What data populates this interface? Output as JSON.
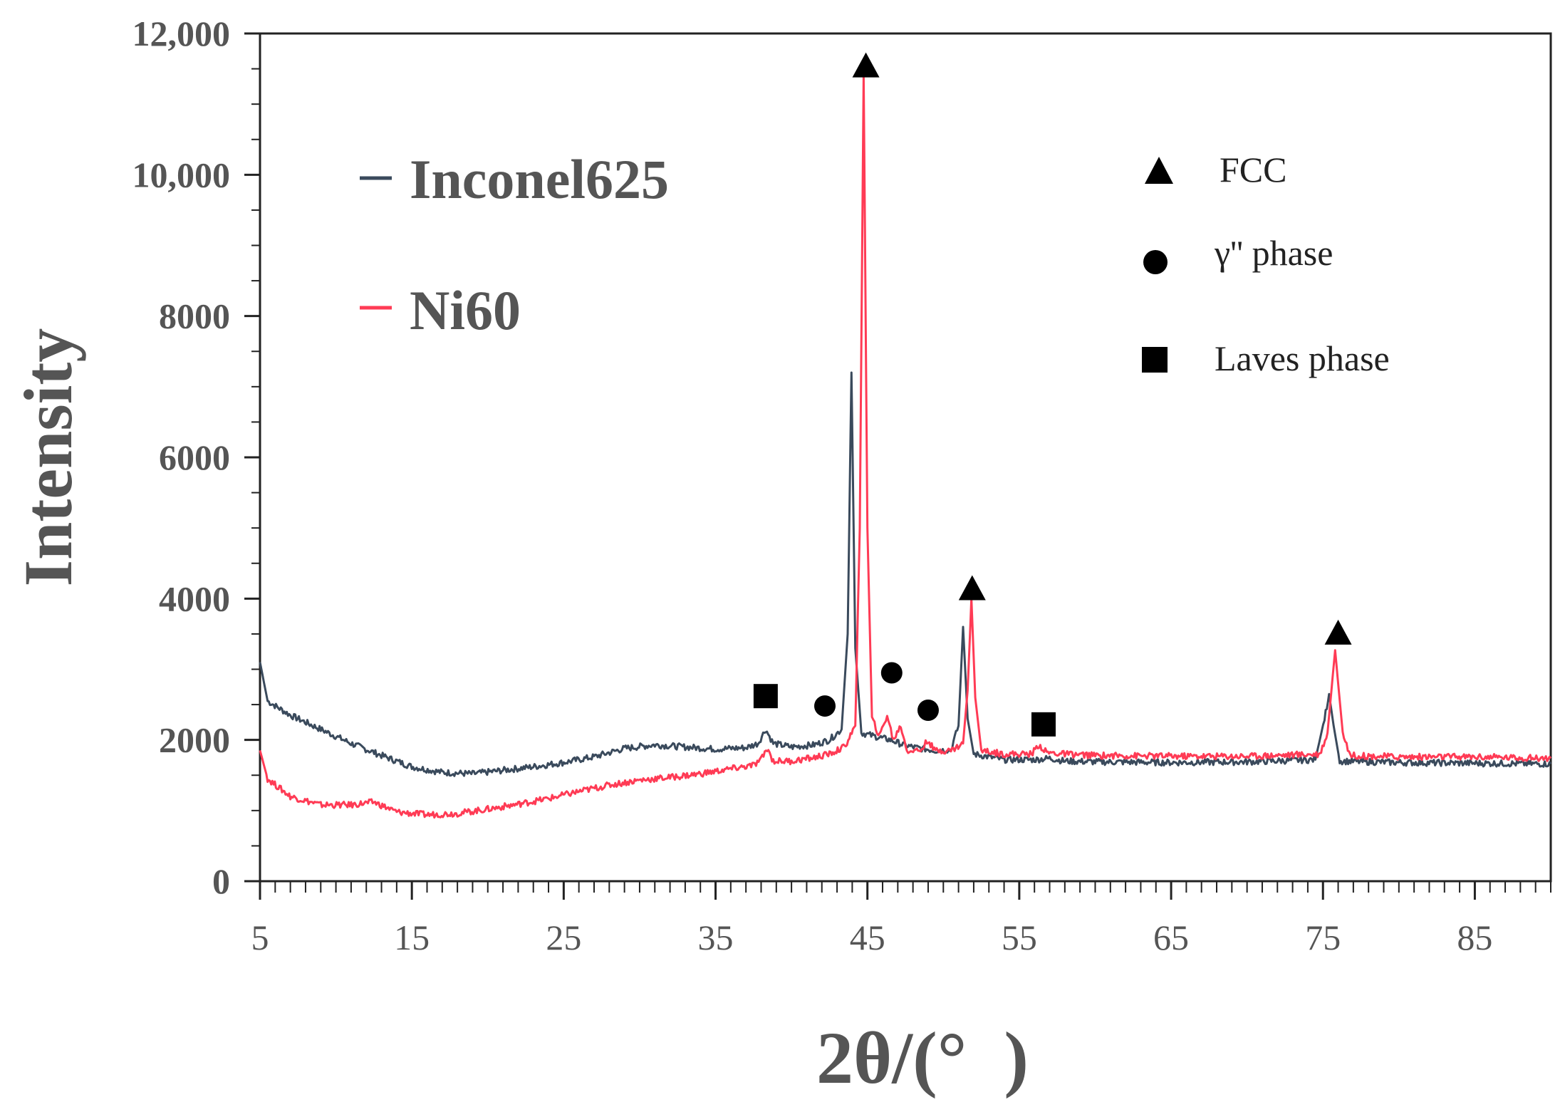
{
  "chart_data": {
    "type": "line",
    "title": "",
    "xlabel": "2θ/(°  )",
    "ylabel": "Intensity",
    "xlim": [
      5,
      90
    ],
    "ylim": [
      0,
      12000
    ],
    "x_ticks": [
      5,
      15,
      25,
      35,
      45,
      55,
      65,
      75,
      85
    ],
    "y_ticks": [
      0,
      2000,
      4000,
      6000,
      8000,
      10000,
      12000
    ],
    "y_tick_labels": [
      "0",
      "2000",
      "4000",
      "6000",
      "8000",
      "10,000",
      "12,000"
    ],
    "series": [
      {
        "name": "Inconel625",
        "color": "#3a4a5c",
        "points": [
          [
            5,
            3100
          ],
          [
            5.5,
            2550
          ],
          [
            7,
            2350
          ],
          [
            9,
            2150
          ],
          [
            11,
            1950
          ],
          [
            13,
            1780
          ],
          [
            15,
            1620
          ],
          [
            17,
            1540
          ],
          [
            19,
            1520
          ],
          [
            21,
            1570
          ],
          [
            23,
            1620
          ],
          [
            25,
            1680
          ],
          [
            27,
            1760
          ],
          [
            29,
            1880
          ],
          [
            31,
            1930
          ],
          [
            33,
            1900
          ],
          [
            35,
            1870
          ],
          [
            37,
            1890
          ],
          [
            37.8,
            1950
          ],
          [
            38.3,
            2150
          ],
          [
            38.8,
            1950
          ],
          [
            40,
            1900
          ],
          [
            41.5,
            1930
          ],
          [
            42.5,
            2000
          ],
          [
            43.3,
            2150
          ],
          [
            43.7,
            3500
          ],
          [
            43.95,
            7200
          ],
          [
            44.2,
            3300
          ],
          [
            44.6,
            2100
          ],
          [
            45.5,
            2050
          ],
          [
            46.5,
            2000
          ],
          [
            47.5,
            1920
          ],
          [
            48.5,
            1880
          ],
          [
            49.5,
            1850
          ],
          [
            50.5,
            1860
          ],
          [
            51.0,
            2200
          ],
          [
            51.3,
            3600
          ],
          [
            51.6,
            2300
          ],
          [
            52.0,
            1800
          ],
          [
            54,
            1720
          ],
          [
            56,
            1720
          ],
          [
            57,
            1740
          ],
          [
            58,
            1700
          ],
          [
            60,
            1690
          ],
          [
            65,
            1680
          ],
          [
            70,
            1690
          ],
          [
            74.5,
            1720
          ],
          [
            75.1,
            2300
          ],
          [
            75.4,
            2650
          ],
          [
            75.7,
            2200
          ],
          [
            76.1,
            1700
          ],
          [
            80,
            1680
          ],
          [
            85,
            1670
          ],
          [
            90,
            1660
          ]
        ]
      },
      {
        "name": "Ni60",
        "color": "#ff3b55",
        "points": [
          [
            5,
            1850
          ],
          [
            5.5,
            1450
          ],
          [
            7,
            1200
          ],
          [
            9,
            1080
          ],
          [
            11,
            1080
          ],
          [
            12.5,
            1120
          ],
          [
            14,
            980
          ],
          [
            16,
            940
          ],
          [
            18,
            960
          ],
          [
            20,
            1020
          ],
          [
            22,
            1090
          ],
          [
            24,
            1170
          ],
          [
            26,
            1270
          ],
          [
            28,
            1360
          ],
          [
            30,
            1430
          ],
          [
            32,
            1470
          ],
          [
            34,
            1520
          ],
          [
            36,
            1590
          ],
          [
            37.5,
            1640
          ],
          [
            38.0,
            1720
          ],
          [
            38.4,
            1880
          ],
          [
            38.8,
            1700
          ],
          [
            40,
            1700
          ],
          [
            41.5,
            1750
          ],
          [
            42.5,
            1800
          ],
          [
            43.5,
            1900
          ],
          [
            44.2,
            2200
          ],
          [
            44.5,
            5000
          ],
          [
            44.75,
            11400
          ],
          [
            45.0,
            5000
          ],
          [
            45.3,
            2300
          ],
          [
            45.8,
            2050
          ],
          [
            46.3,
            2350
          ],
          [
            46.7,
            2000
          ],
          [
            47.2,
            2200
          ],
          [
            47.6,
            1850
          ],
          [
            48.5,
            1850
          ],
          [
            49.0,
            2000
          ],
          [
            49.4,
            1850
          ],
          [
            50.5,
            1850
          ],
          [
            51.3,
            1950
          ],
          [
            51.6,
            2700
          ],
          [
            51.85,
            4000
          ],
          [
            52.1,
            2600
          ],
          [
            52.5,
            1850
          ],
          [
            54,
            1800
          ],
          [
            55.8,
            1800
          ],
          [
            56.3,
            1930
          ],
          [
            56.8,
            1820
          ],
          [
            58,
            1800
          ],
          [
            60,
            1780
          ],
          [
            65,
            1770
          ],
          [
            70,
            1770
          ],
          [
            74.8,
            1800
          ],
          [
            75.3,
            2100
          ],
          [
            75.8,
            3270
          ],
          [
            76.3,
            2100
          ],
          [
            76.8,
            1780
          ],
          [
            80,
            1760
          ],
          [
            85,
            1760
          ],
          [
            90,
            1740
          ]
        ]
      }
    ],
    "annotations": [
      {
        "marker": "triangle",
        "phase": "FCC",
        "x": 44.9,
        "y": 11550
      },
      {
        "marker": "triangle",
        "phase": "FCC",
        "x": 51.9,
        "y": 4150
      },
      {
        "marker": "triangle",
        "phase": "FCC",
        "x": 76.0,
        "y": 3520
      },
      {
        "marker": "circle",
        "phase": "γ'' phase",
        "x": 42.2,
        "y": 2480
      },
      {
        "marker": "circle",
        "phase": "γ'' phase",
        "x": 46.6,
        "y": 2950
      },
      {
        "marker": "circle",
        "phase": "γ'' phase",
        "x": 49.0,
        "y": 2420
      },
      {
        "marker": "square",
        "phase": "Laves phase",
        "x": 38.3,
        "y": 2620
      },
      {
        "marker": "square",
        "phase": "Laves phase",
        "x": 56.6,
        "y": 2220
      }
    ],
    "legend": {
      "placement": "top-left",
      "entries": [
        {
          "label": "Inconel625",
          "color": "#3a4a5c"
        },
        {
          "label": "Ni60",
          "color": "#ff3b55"
        }
      ]
    },
    "marker_legend": {
      "placement": "top-right",
      "entries": [
        {
          "marker": "triangle",
          "label": "FCC"
        },
        {
          "marker": "circle",
          "label": "γ'' phase"
        },
        {
          "marker": "square",
          "label": "Laves phase"
        }
      ]
    }
  }
}
